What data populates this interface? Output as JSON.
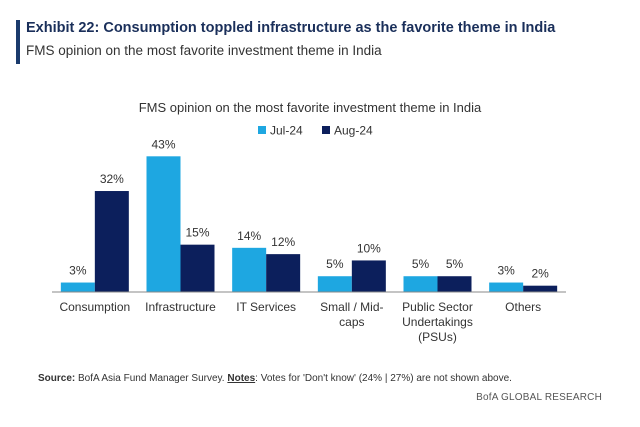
{
  "exhibit": {
    "title": "Exhibit 22: Consumption toppled infrastructure as the favorite theme in India",
    "subtitle": "FMS opinion on the most favorite investment theme in India"
  },
  "chart_data": {
    "type": "bar",
    "title": "FMS opinion on the most favorite investment theme in India",
    "categories": [
      [
        "Consumption"
      ],
      [
        "Infrastructure"
      ],
      [
        "IT Services"
      ],
      [
        "Small / Mid-",
        "caps"
      ],
      [
        "Public Sector",
        "Undertakings",
        "(PSUs)"
      ],
      [
        "Others"
      ]
    ],
    "series": [
      {
        "name": "Jul-24",
        "values": [
          3,
          43,
          14,
          5,
          5,
          3
        ],
        "labels": [
          "3%",
          "43%",
          "14%",
          "5%",
          "5%",
          "3%"
        ],
        "color": "#1ea7e1"
      },
      {
        "name": "Aug-24",
        "values": [
          32,
          15,
          12,
          10,
          5,
          2
        ],
        "labels": [
          "32%",
          "15%",
          "12%",
          "10%",
          "5%",
          "2%"
        ],
        "color": "#0c1f5c"
      }
    ],
    "ylim": [
      0,
      45
    ],
    "grid": false,
    "legend_position": "top-center",
    "xlabel": "",
    "ylabel": ""
  },
  "source": {
    "label": "Source:",
    "text_before": " BofA Asia Fund Manager Survey. ",
    "notes_label": "Notes",
    "text_after": ": Votes for 'Don't know' (24% | 27%) are not shown above."
  },
  "footer": {
    "brand": "BofA GLOBAL RESEARCH"
  }
}
